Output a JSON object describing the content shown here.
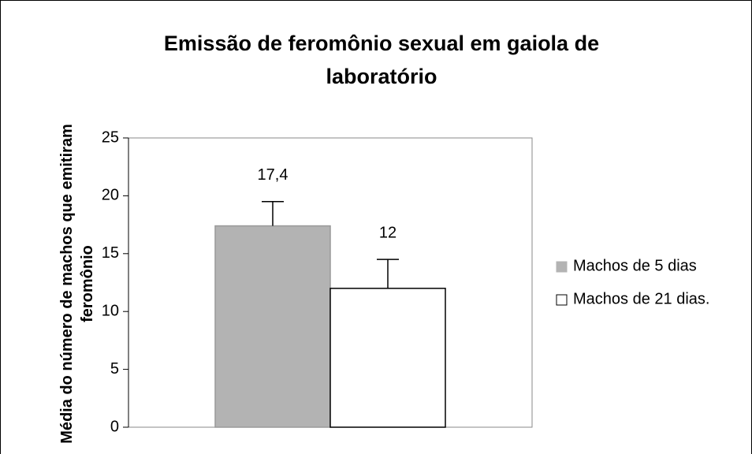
{
  "chart_data": {
    "type": "bar",
    "title": "Emissão de feromônio sexual em gaiola de laboratório",
    "y_label": "Média do número de machos que emitiram feromônio",
    "categories": [
      null
    ],
    "series": [
      {
        "name": "Machos de 5 dias",
        "color": "#b3b3b3",
        "values": [
          17.4
        ],
        "value_labels": [
          "17,4"
        ],
        "errors": [
          2.1
        ]
      },
      {
        "name": "Machos de 21 dias.",
        "color": "#ffffff",
        "values": [
          12
        ],
        "errors": [
          2.5
        ]
      }
    ],
    "ylim": [
      0,
      25
    ],
    "yticks": [
      0,
      5,
      10,
      15,
      20,
      25
    ],
    "grid": false,
    "legend": "right"
  }
}
